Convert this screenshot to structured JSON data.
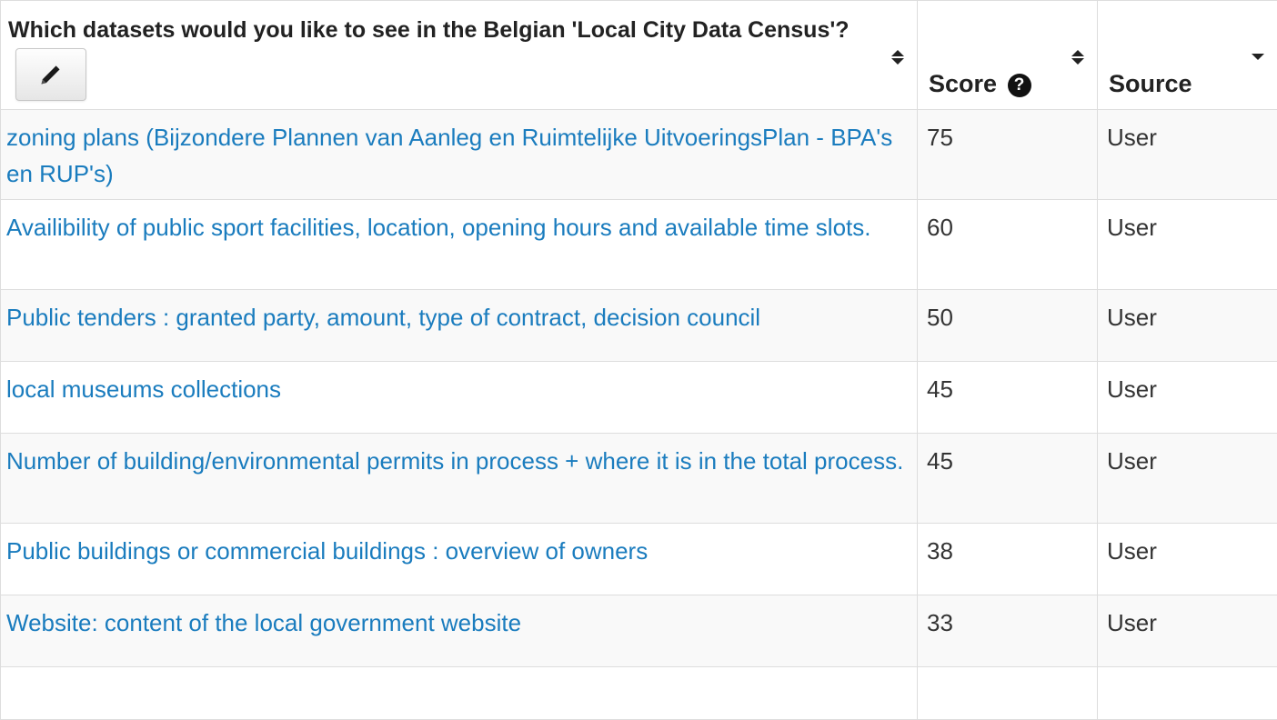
{
  "header": {
    "question": "Which datasets would you like to see in the Belgian 'Local City Data Census'?",
    "score_label": "Score",
    "source_label": "Source"
  },
  "rows": [
    {
      "dataset": "zoning plans (Bijzondere Plannen van Aanleg en Ruimtelijke UitvoeringsPlan - BPA's en RUP's)",
      "score": "75",
      "source": "User"
    },
    {
      "dataset": "Availibility of public sport facilities, location, opening hours and available time slots.",
      "score": "60",
      "source": "User"
    },
    {
      "dataset": "Public tenders : granted party, amount, type of contract, decision council",
      "score": "50",
      "source": "User"
    },
    {
      "dataset": "local museums collections",
      "score": "45",
      "source": "User"
    },
    {
      "dataset": "Number of building/environmental permits in process + where it is in the total process.",
      "score": "45",
      "source": "User"
    },
    {
      "dataset": "Public buildings or commercial buildings : overview of owners",
      "score": "38",
      "source": "User"
    },
    {
      "dataset": "Website: content of the local government website",
      "score": "33",
      "source": "User"
    }
  ],
  "colors": {
    "link": "#1a7cbe",
    "stripe": "#f9f9f9",
    "border": "#dddddd"
  }
}
